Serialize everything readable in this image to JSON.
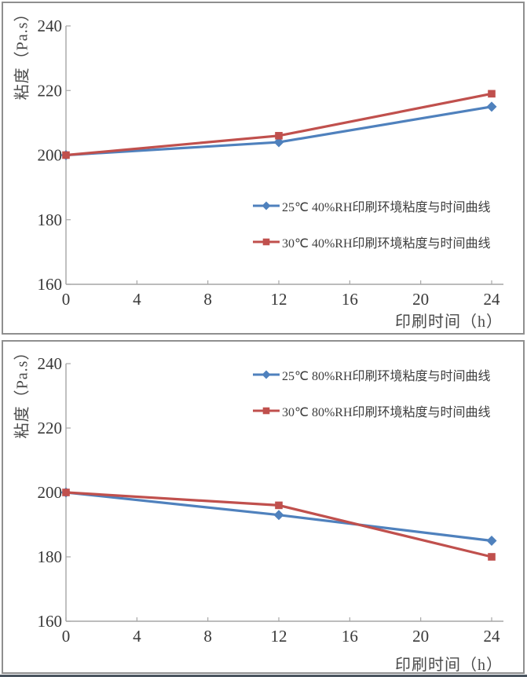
{
  "colors": {
    "series_blue": "#4f81bd",
    "series_red": "#c0504d",
    "axis_line": "#a6a6a6",
    "tick_text": "#383838",
    "panel_border": "#8f8f8f"
  },
  "chart_data": [
    {
      "type": "line",
      "title": "",
      "x": [
        0,
        12,
        24
      ],
      "series": [
        {
          "name": "25℃ 40%RH印刷环境粘度与时间曲线",
          "values": [
            200,
            204,
            215
          ],
          "color": "#4f81bd",
          "marker": "diamond"
        },
        {
          "name": "30℃ 40%RH印刷环境粘度与时间曲线",
          "values": [
            200,
            206,
            219
          ],
          "color": "#c0504d",
          "marker": "square"
        }
      ],
      "xlabel": "印刷时间（h）",
      "ylabel": "粘度（Pa.s）",
      "xlim": [
        0,
        24
      ],
      "ylim": [
        160,
        240
      ],
      "xticks": [
        0,
        4,
        8,
        12,
        16,
        20,
        24
      ],
      "yticks": [
        160,
        180,
        200,
        220,
        240
      ],
      "grid": false,
      "legend_position": "inside-center-right"
    },
    {
      "type": "line",
      "title": "",
      "x": [
        0,
        12,
        24
      ],
      "series": [
        {
          "name": "25℃ 80%RH印刷环境粘度与时间曲线",
          "values": [
            200,
            193,
            185
          ],
          "color": "#4f81bd",
          "marker": "diamond"
        },
        {
          "name": "30℃ 80%RH印刷环境粘度与时间曲线",
          "values": [
            200,
            196,
            180
          ],
          "color": "#c0504d",
          "marker": "square"
        }
      ],
      "xlabel": "印刷时间（h）",
      "ylabel": "粘度（Pa.s）",
      "xlim": [
        0,
        24
      ],
      "ylim": [
        160,
        240
      ],
      "xticks": [
        0,
        4,
        8,
        12,
        16,
        20,
        24
      ],
      "yticks": [
        160,
        180,
        200,
        220,
        240
      ],
      "grid": false,
      "legend_position": "inside-top-right"
    }
  ]
}
